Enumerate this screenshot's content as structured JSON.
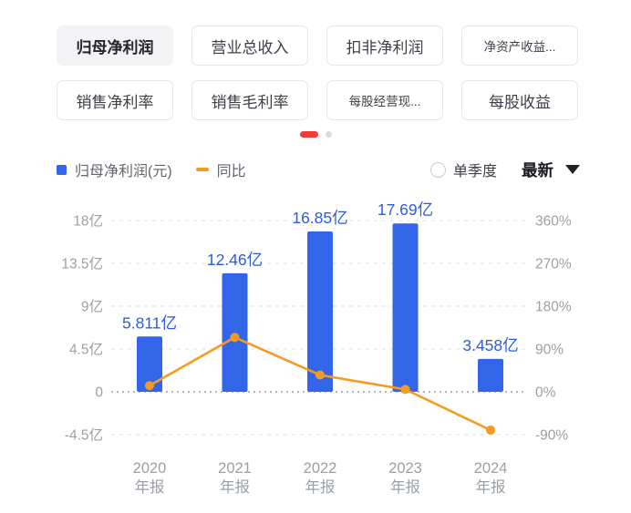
{
  "tabs": {
    "rows": [
      [
        {
          "label": "归母净利润",
          "active": true
        },
        {
          "label": "营业总收入",
          "active": false
        },
        {
          "label": "扣非净利润",
          "active": false
        },
        {
          "label": "净资产收益...",
          "active": false
        }
      ],
      [
        {
          "label": "销售净利率",
          "active": false
        },
        {
          "label": "销售毛利率",
          "active": false
        },
        {
          "label": "每股经营现...",
          "active": false
        },
        {
          "label": "每股收益",
          "active": false
        }
      ]
    ]
  },
  "pagination": {
    "count": 2,
    "active": 0
  },
  "legend": {
    "bar_label": "归母净利润(元)",
    "line_label": "同比"
  },
  "controls": {
    "single_quarter_label": "单季度",
    "single_quarter_checked": false,
    "period_label": "最新",
    "dropdown_icon": "chevron-down"
  },
  "colors": {
    "bar": "#3365e8",
    "line": "#f59b22",
    "value_label": "#2e5be0",
    "active_dot": "#f23b3b",
    "axis_text": "#9aa0a6",
    "grid": "#e3e5e9",
    "zero_line": "#a7acb4"
  },
  "chart_data": {
    "type": "bar",
    "title": "",
    "xlabel": "",
    "ylabel_left": "归母净利润(元)",
    "ylabel_right": "同比(%)",
    "grid": true,
    "legend_position": "top-left",
    "categories": [
      {
        "year": "2020",
        "period": "年报"
      },
      {
        "year": "2021",
        "period": "年报"
      },
      {
        "year": "2022",
        "period": "年报"
      },
      {
        "year": "2023",
        "period": "年报"
      },
      {
        "year": "2024",
        "period": "年报"
      }
    ],
    "series": [
      {
        "name": "归母净利润(元)",
        "kind": "bar",
        "unit": "亿",
        "values": [
          5.811,
          12.46,
          16.85,
          17.69,
          3.458
        ],
        "labels": [
          "5.811亿",
          "12.46亿",
          "16.85亿",
          "17.69亿",
          "3.458亿"
        ],
        "color": "#3365e8"
      },
      {
        "name": "同比",
        "kind": "line",
        "unit": "%",
        "values": [
          13,
          114.4,
          35.2,
          5.0,
          -80.5
        ],
        "color": "#f59b22"
      }
    ],
    "left_axis": {
      "range": [
        -4.5,
        18
      ],
      "ticks": [
        {
          "label": "18亿",
          "value": 18
        },
        {
          "label": "13.5亿",
          "value": 13.5
        },
        {
          "label": "9亿",
          "value": 9
        },
        {
          "label": "4.5亿",
          "value": 4.5
        },
        {
          "label": "0",
          "value": 0
        },
        {
          "label": "-4.5亿",
          "value": -4.5
        }
      ]
    },
    "right_axis": {
      "range": [
        -90,
        360
      ],
      "ticks": [
        {
          "label": "360%",
          "value": 360
        },
        {
          "label": "270%",
          "value": 270
        },
        {
          "label": "180%",
          "value": 180
        },
        {
          "label": "90%",
          "value": 90
        },
        {
          "label": "0%",
          "value": 0
        },
        {
          "label": "-90%",
          "value": -90
        }
      ]
    }
  }
}
